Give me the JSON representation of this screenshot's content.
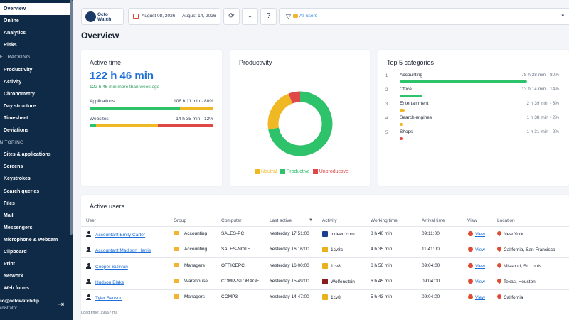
{
  "sidebar": {
    "items": [
      {
        "label": "Overview",
        "type": "item",
        "active": true
      },
      {
        "label": "Online",
        "type": "item"
      },
      {
        "label": "Analytics",
        "type": "item"
      },
      {
        "label": "Risks",
        "type": "item"
      },
      {
        "label": "ME TRACKING",
        "type": "section"
      },
      {
        "label": "Productivity",
        "type": "item"
      },
      {
        "label": "Activity",
        "type": "item"
      },
      {
        "label": "Chronometry",
        "type": "item"
      },
      {
        "label": "Day structure",
        "type": "item"
      },
      {
        "label": "Timesheet",
        "type": "item"
      },
      {
        "label": "Deviations",
        "type": "item"
      },
      {
        "label": "ONITORING",
        "type": "section"
      },
      {
        "label": "Sites & applications",
        "type": "item"
      },
      {
        "label": "Screens",
        "type": "item"
      },
      {
        "label": "Keystrokes",
        "type": "item"
      },
      {
        "label": "Search queries",
        "type": "item"
      },
      {
        "label": "Files",
        "type": "item"
      },
      {
        "label": "Mail",
        "type": "item"
      },
      {
        "label": "Messengers",
        "type": "item"
      },
      {
        "label": "Microphone & webcam",
        "type": "item"
      },
      {
        "label": "Clipboard",
        "type": "item"
      },
      {
        "label": "Print",
        "type": "item"
      },
      {
        "label": "Network",
        "type": "item"
      },
      {
        "label": "Web forms",
        "type": "item"
      }
    ],
    "user_email": "mo@octowatchdip...",
    "user_role": "ministrator"
  },
  "topbar": {
    "logo_text_1": "Octo",
    "logo_text_2": "Watch",
    "date_range": "August 08, 2026 — August 14, 2026",
    "filter_label": "All users",
    "refresh_icon": "refresh-icon",
    "download_icon": "download-icon",
    "help_icon": "help-icon"
  },
  "page_title": "Overview",
  "active_time": {
    "title": "Active time",
    "total": "122 h 46 min",
    "delta": "122 h 46 min more than week ago",
    "applications_label": "Applications",
    "applications_value": "108 h 11 min · 88%",
    "websites_label": "Websites",
    "websites_value": "14 h 35 min · 12%",
    "applications_split": {
      "productive": 0.73,
      "neutral": 0.27,
      "unproductive": 0.0
    },
    "websites_split": {
      "productive": 0.05,
      "neutral": 0.5,
      "unproductive": 0.45
    }
  },
  "productivity": {
    "title": "Productivity",
    "legend": [
      {
        "label": "Neutral",
        "color": "#f0b823"
      },
      {
        "label": "Productive",
        "color": "#2ec26a"
      },
      {
        "label": "Unproductive",
        "color": "#e04848"
      }
    ],
    "donut": [
      {
        "name": "Productive",
        "value": 0.72,
        "color": "#2ec26a"
      },
      {
        "name": "Neutral",
        "value": 0.22,
        "color": "#f0b823"
      },
      {
        "name": "Unproductive",
        "value": 0.06,
        "color": "#e04848"
      }
    ]
  },
  "top_categories": {
    "title": "Top 5 categories",
    "items": [
      {
        "num": "1",
        "name": "Accounting",
        "value": "78 h 28 min · 80%",
        "fraction": 0.8,
        "color": "#2ec26a"
      },
      {
        "num": "2",
        "name": "Office",
        "value": "13 h 14 min · 14%",
        "fraction": 0.14,
        "color": "#2ec26a"
      },
      {
        "num": "3",
        "name": "Entertainment",
        "value": "2 h 39 min · 3%",
        "fraction": 0.03,
        "color": "#f0b823"
      },
      {
        "num": "4",
        "name": "Search engines",
        "value": "1 h 38 min · 2%",
        "fraction": 0.02,
        "color": "#f0b823"
      },
      {
        "num": "5",
        "name": "Shops",
        "value": "1 h 31 min · 2%",
        "fraction": 0.02,
        "color": "#e04848"
      }
    ]
  },
  "active_users": {
    "title": "Active users",
    "headers": [
      "User",
      "Group",
      "Computer",
      "Last active",
      "Activity",
      "Working time",
      "Arrival time",
      "View",
      "Location"
    ],
    "sort_indicator": "▼",
    "rows": [
      {
        "user": "Accountant Emily Carter",
        "group": "Accounting",
        "computer": "SALES-PC",
        "last_active": "Yesterday 17:51:00",
        "activity": "indeed.com",
        "activity_color": "#1d3f8f",
        "working": "8 h 40 min",
        "arrival": "09:11:00",
        "view": "View",
        "location": "New York"
      },
      {
        "user": "Accountant Madison Harris",
        "group": "Accounting",
        "computer": "SALES-NOTE",
        "last_active": "Yesterday 16:16:00",
        "activity": "1cv8c",
        "activity_color": "#e8b21c",
        "working": "4 h 35 min",
        "arrival": "11:41:00",
        "view": "View",
        "location": "California, San Francisco"
      },
      {
        "user": "Cooper Sullivan",
        "group": "Managers",
        "computer": "OFFICEPC",
        "last_active": "Yesterday 16:00:00",
        "activity": "1cv8",
        "activity_color": "#e8b21c",
        "working": "6 h 56 min",
        "arrival": "09:04:00",
        "view": "View",
        "location": "Missouri, St. Louis"
      },
      {
        "user": "Hudson Blake",
        "group": "Warehouse",
        "computer": "COMP-STORAGE",
        "last_active": "Yesterday 15:49:00",
        "activity": "Wolfenstein",
        "activity_color": "#8a1c1c",
        "working": "6 h 45 min",
        "arrival": "09:04:00",
        "view": "View",
        "location": "Texas, Houston"
      },
      {
        "user": "Tyler Benson",
        "group": "Managers",
        "computer": "COMP3",
        "last_active": "Yesterday 14:47:00",
        "activity": "1cv8",
        "activity_color": "#e8b21c",
        "working": "5 h 43 min",
        "arrival": "09:04:00",
        "view": "View",
        "location": "California"
      }
    ]
  },
  "footer_note": "Load time: 19667 ms"
}
